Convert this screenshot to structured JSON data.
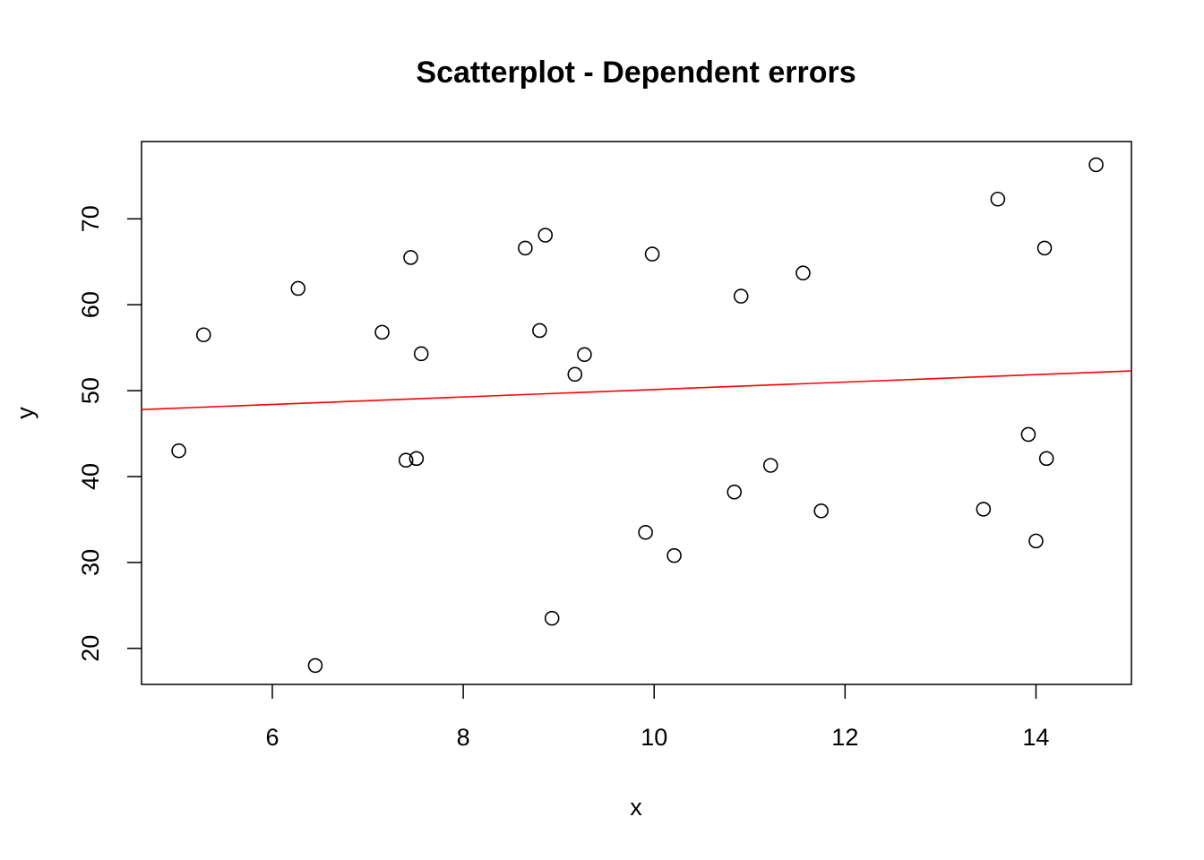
{
  "chart_data": {
    "type": "scatter",
    "title": "Scatterplot - Dependent errors",
    "xlabel": "x",
    "ylabel": "y",
    "xlim": [
      4.63,
      15.0
    ],
    "ylim": [
      15.8,
      79.0
    ],
    "xticks": [
      6,
      8,
      10,
      12,
      14
    ],
    "yticks": [
      20,
      30,
      40,
      50,
      60,
      70
    ],
    "grid": false,
    "legend": "none",
    "point_color": "#000000",
    "fit_line_color": "#ff0000",
    "points": [
      {
        "x": 5.02,
        "y": 43.0
      },
      {
        "x": 5.28,
        "y": 56.5
      },
      {
        "x": 6.27,
        "y": 61.9
      },
      {
        "x": 6.45,
        "y": 18.0
      },
      {
        "x": 7.15,
        "y": 56.8
      },
      {
        "x": 7.4,
        "y": 41.9
      },
      {
        "x": 7.45,
        "y": 65.5
      },
      {
        "x": 7.51,
        "y": 42.1
      },
      {
        "x": 7.56,
        "y": 54.3
      },
      {
        "x": 8.65,
        "y": 66.6
      },
      {
        "x": 8.8,
        "y": 57.0
      },
      {
        "x": 8.86,
        "y": 68.1
      },
      {
        "x": 8.93,
        "y": 23.5
      },
      {
        "x": 9.17,
        "y": 51.9
      },
      {
        "x": 9.27,
        "y": 54.2
      },
      {
        "x": 9.91,
        "y": 33.5
      },
      {
        "x": 9.98,
        "y": 65.9
      },
      {
        "x": 10.21,
        "y": 30.8
      },
      {
        "x": 10.84,
        "y": 38.2
      },
      {
        "x": 10.91,
        "y": 61.0
      },
      {
        "x": 11.22,
        "y": 41.3
      },
      {
        "x": 11.56,
        "y": 63.7
      },
      {
        "x": 11.75,
        "y": 36.0
      },
      {
        "x": 13.45,
        "y": 36.2
      },
      {
        "x": 13.6,
        "y": 72.3
      },
      {
        "x": 13.92,
        "y": 44.9
      },
      {
        "x": 14.0,
        "y": 32.5
      },
      {
        "x": 14.09,
        "y": 66.6
      },
      {
        "x": 14.11,
        "y": 42.1
      },
      {
        "x": 14.63,
        "y": 76.3
      }
    ],
    "fit_line": {
      "x": [
        4.63,
        15.0
      ],
      "y": [
        47.8,
        52.3
      ]
    }
  }
}
